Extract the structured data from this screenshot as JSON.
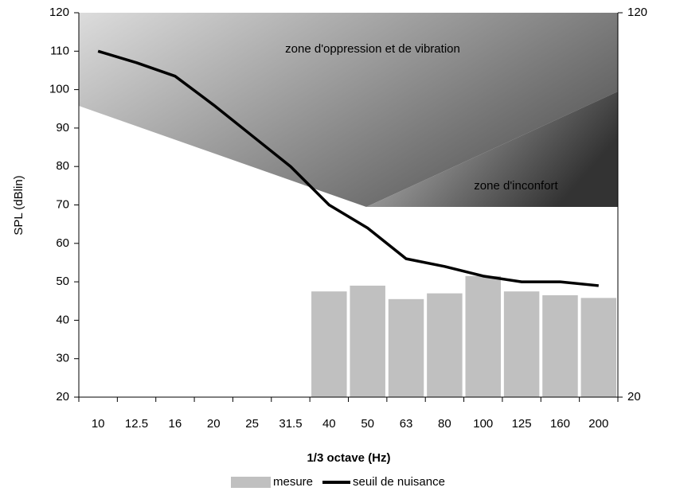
{
  "chart_data": {
    "type": "bar-line",
    "y_label": "SPL (dBlin)",
    "x_label": "1/3 octave (Hz)",
    "categories": [
      "10",
      "12.5",
      "16",
      "20",
      "25",
      "31.5",
      "40",
      "50",
      "63",
      "80",
      "100",
      "125",
      "160",
      "200"
    ],
    "series": [
      {
        "name": "mesure",
        "type": "bar",
        "color": "#c0c0c0",
        "values": [
          null,
          null,
          null,
          null,
          null,
          null,
          47.5,
          49,
          45.5,
          47,
          51.5,
          47.5,
          46.5,
          45.8
        ]
      },
      {
        "name": "seuil de nuisance",
        "type": "line",
        "color": "#000000",
        "values": [
          110,
          107,
          103.5,
          96,
          88,
          80,
          70,
          64,
          56,
          54,
          51.5,
          50,
          50,
          49
        ]
      }
    ],
    "annotations": [
      "zone d'oppression et de vibration",
      "zone d'inconfort"
    ],
    "ylim": [
      20,
      120
    ],
    "yticks": [
      20,
      30,
      40,
      50,
      60,
      70,
      80,
      90,
      100,
      110,
      120
    ],
    "y2lim": [
      20,
      120
    ],
    "y2ticks": [
      20,
      120
    ]
  }
}
